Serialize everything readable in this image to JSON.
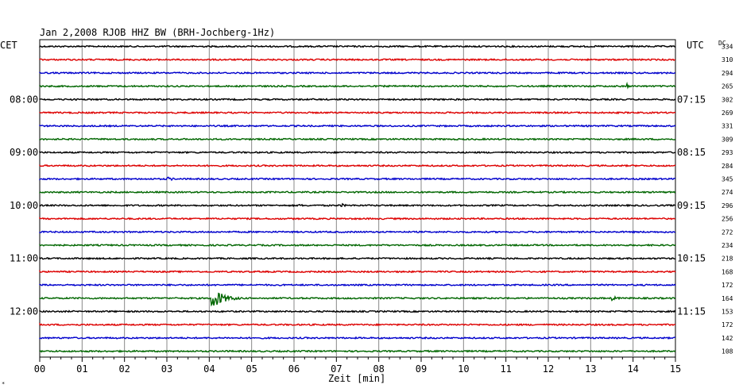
{
  "header": {
    "title": "Jan 2,2008   RJOB HHZ BW (BRH-Jochberg-1Hz)",
    "left_timezone": "CET",
    "right_timezone": "UTC",
    "dc_label": "DC"
  },
  "chart_data": {
    "type": "line",
    "title": "Jan 2,2008   RJOB HHZ BW (BRH-Jochberg-1Hz)",
    "xlabel": "Zeit [min]",
    "xlim": [
      0,
      15
    ],
    "x_ticks": [
      "00",
      "01",
      "02",
      "03",
      "04",
      "05",
      "06",
      "07",
      "08",
      "09",
      "10",
      "11",
      "12",
      "13",
      "14",
      "15"
    ],
    "grid": true,
    "trace_colors": [
      "#000000",
      "#dd0000",
      "#0000cc",
      "#006600"
    ],
    "left_time_labels": [
      {
        "trace": 4,
        "label": "08:00"
      },
      {
        "trace": 8,
        "label": "09:00"
      },
      {
        "trace": 12,
        "label": "10:00"
      },
      {
        "trace": 16,
        "label": "11:00"
      },
      {
        "trace": 20,
        "label": "12:00"
      }
    ],
    "right_time_labels": [
      {
        "trace": 4,
        "label": "07:15"
      },
      {
        "trace": 8,
        "label": "08:15"
      },
      {
        "trace": 12,
        "label": "09:15"
      },
      {
        "trace": 16,
        "label": "10:15"
      },
      {
        "trace": 20,
        "label": "11:15"
      }
    ],
    "dc_offsets": [
      "334",
      "310",
      "294",
      "265",
      "302",
      "269",
      "331",
      "309",
      "293",
      "284",
      "345",
      "274",
      "296",
      "256",
      "272",
      "234",
      "218",
      "168",
      "172",
      "164",
      "153",
      "172",
      "142",
      "108"
    ],
    "events": [
      {
        "trace": 10,
        "start_min": 3.0,
        "end_min": 3.6,
        "amplitude": 3
      },
      {
        "trace": 12,
        "start_min": 6.1,
        "end_min": 6.7,
        "amplitude": 2
      },
      {
        "trace": 12,
        "start_min": 7.1,
        "end_min": 7.5,
        "amplitude": 3
      },
      {
        "trace": 19,
        "start_min": 4.05,
        "end_min": 5.0,
        "amplitude": 15
      },
      {
        "trace": 19,
        "start_min": 13.5,
        "end_min": 14.1,
        "amplitude": 3
      },
      {
        "trace": 3,
        "start_min": 13.85,
        "end_min": 13.95,
        "amplitude": 6
      }
    ]
  }
}
